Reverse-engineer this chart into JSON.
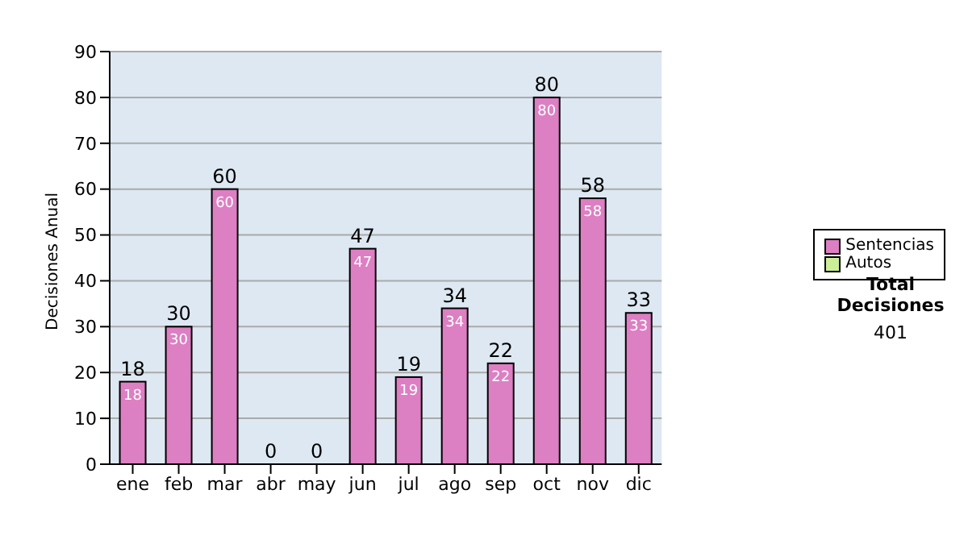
{
  "chart_data": {
    "type": "bar",
    "stacked": true,
    "ylabel": "Decisiones Anual",
    "categories": [
      "ene",
      "feb",
      "mar",
      "abr",
      "may",
      "jun",
      "jul",
      "ago",
      "sep",
      "oct",
      "nov",
      "dic"
    ],
    "series": [
      {
        "name": "Sentencias",
        "color": "#dd7fc3",
        "values": [
          18,
          30,
          60,
          0,
          0,
          47,
          19,
          34,
          22,
          80,
          58,
          33
        ],
        "value_labels": [
          "18",
          "30",
          "60",
          null,
          null,
          "47",
          "19",
          "34",
          "22",
          "80",
          "58",
          "33"
        ]
      },
      {
        "name": "Autos",
        "color": "#ccee99",
        "values": [
          0,
          0,
          0,
          0,
          0,
          0,
          0,
          0,
          0,
          0,
          0,
          0
        ]
      }
    ],
    "totals": [
      "18",
      "30",
      "60",
      "0",
      "0",
      "47",
      "19",
      "34",
      "22",
      "80",
      "58",
      "33"
    ],
    "ylim": [
      0,
      90
    ],
    "yticks": [
      0,
      10,
      20,
      30,
      40,
      50,
      60,
      70,
      80,
      90
    ],
    "grid": "y",
    "legend": "right",
    "annotations": [
      "Total Decisiones",
      "401"
    ]
  }
}
